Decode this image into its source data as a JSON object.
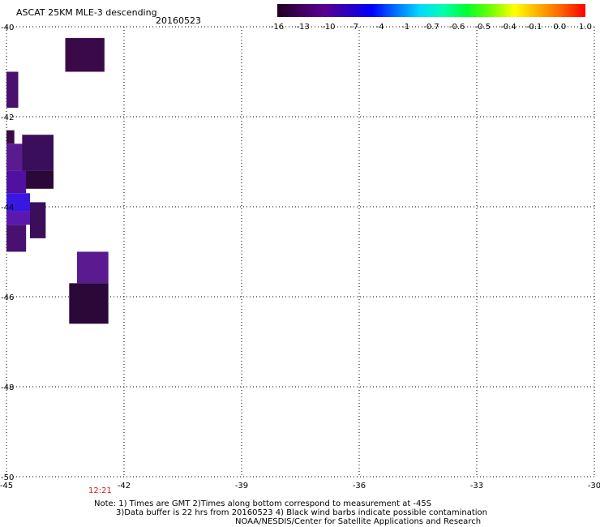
{
  "header": {
    "title": "ASCAT 25KM MLE-3 descending",
    "date": "20160523"
  },
  "colorbar": {
    "stops": [
      "#200020",
      "#400060",
      "#5a0090",
      "#2a00c0",
      "#0000ff",
      "#0070ff",
      "#00d8ff",
      "#00ffb0",
      "#00ff30",
      "#70ff00",
      "#ffff00",
      "#ffb000",
      "#ff6000",
      "#ff0000"
    ],
    "labels": [
      "-16",
      "-13",
      "-10",
      "-7",
      "-4",
      "-1",
      "-0.7",
      "-0.6",
      "-0.5",
      "-0.4",
      "-0.1",
      "0.0",
      "1.0"
    ]
  },
  "footer": {
    "time_label": "12:21",
    "note_1": "Note: 1) Times are GMT 2)Times along bottom correspond to measurement at -45S",
    "note_2": "3)Data buffer is 22 hrs from 20160523 4) Black wind barbs indicate possible contamination",
    "credit": "NOAA/NESDIS/Center for Satellite Applications and Research"
  },
  "chart_data": {
    "type": "heatmap",
    "x_ticks": [
      -45,
      -42,
      -39,
      -36,
      -33,
      -30
    ],
    "x_tick_labels": [
      "-45",
      "-42",
      "-39",
      "-36",
      "-33",
      "-30"
    ],
    "y_ticks": [
      -40,
      -42,
      -44,
      -46,
      -48,
      -50
    ],
    "y_tick_labels": [
      "-40",
      "-42",
      "-44",
      "-46",
      "-48",
      "-50"
    ],
    "xlim": [
      -45,
      -30
    ],
    "ylim": [
      -50,
      -40
    ],
    "grid": true,
    "cells": [
      {
        "lon0": -43.5,
        "lon1": -42.5,
        "lat0": -40.25,
        "lat1": -41.0,
        "color": "#3a0a48"
      },
      {
        "lon0": -45.0,
        "lon1": -44.7,
        "lat0": -41.0,
        "lat1": -41.8,
        "color": "#4a1070"
      },
      {
        "lon0": -45.0,
        "lon1": -44.8,
        "lat0": -42.3,
        "lat1": -42.6,
        "color": "#3a0a48"
      },
      {
        "lon0": -45.0,
        "lon1": -44.5,
        "lat0": -42.6,
        "lat1": -43.2,
        "color": "#5a1a90"
      },
      {
        "lon0": -44.6,
        "lon1": -43.8,
        "lat0": -42.4,
        "lat1": -43.2,
        "color": "#3a0e5a"
      },
      {
        "lon0": -44.6,
        "lon1": -43.8,
        "lat0": -43.2,
        "lat1": -43.6,
        "color": "#2a0838"
      },
      {
        "lon0": -45.0,
        "lon1": -44.5,
        "lat0": -43.2,
        "lat1": -43.7,
        "color": "#5010a0"
      },
      {
        "lon0": -45.0,
        "lon1": -44.4,
        "lat0": -43.7,
        "lat1": -44.1,
        "color": "#3818e0"
      },
      {
        "lon0": -45.0,
        "lon1": -44.4,
        "lat0": -44.1,
        "lat1": -44.4,
        "color": "#5a18b0"
      },
      {
        "lon0": -44.4,
        "lon1": -44.0,
        "lat0": -43.9,
        "lat1": -44.7,
        "color": "#3a0e5a"
      },
      {
        "lon0": -45.0,
        "lon1": -44.5,
        "lat0": -44.4,
        "lat1": -45.0,
        "color": "#4a1070"
      },
      {
        "lon0": -43.2,
        "lon1": -42.4,
        "lat0": -45.0,
        "lat1": -45.7,
        "color": "#5a1a90"
      },
      {
        "lon0": -43.4,
        "lon1": -42.4,
        "lat0": -45.7,
        "lat1": -46.6,
        "color": "#2a0838"
      }
    ]
  }
}
